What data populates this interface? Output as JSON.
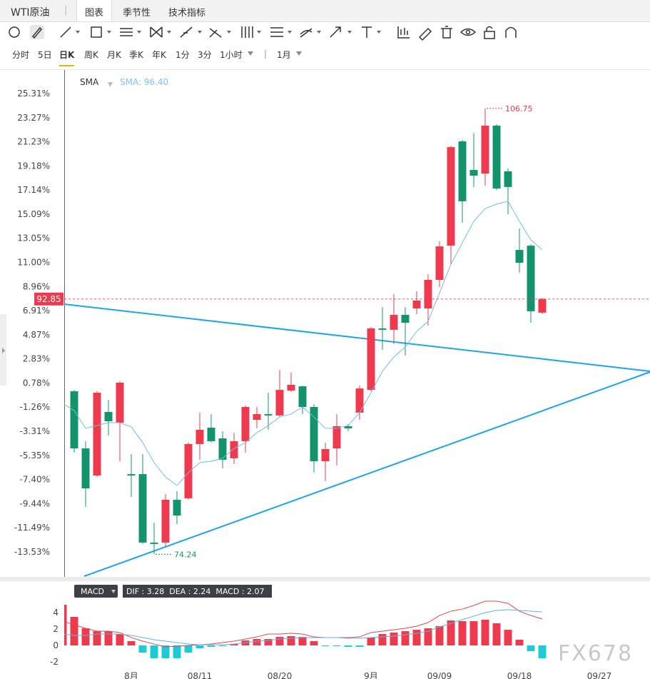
{
  "header": {
    "title": "WTI原油",
    "tabs": [
      "图表",
      "季节性",
      "技术指标"
    ]
  },
  "periods": [
    "分时",
    "5日",
    "日K",
    "周K",
    "月K",
    "季K",
    "年K",
    "1分",
    "3分",
    "1小时"
  ],
  "period_range": "1月",
  "watermark": "FX678",
  "chart_data": [
    {
      "type": "candlestick",
      "up_color": "#ee3a4c",
      "down_color": "#14946c",
      "ylim": [
        -15.65,
        27.31
      ],
      "yticks": [
        {
          "value": 25.31,
          "label": "25.31%"
        },
        {
          "value": 23.27,
          "label": "23.27%"
        },
        {
          "value": 21.23,
          "label": "21.23%"
        },
        {
          "value": 19.18,
          "label": "19.18%"
        },
        {
          "value": 17.14,
          "label": "17.14%"
        },
        {
          "value": 15.09,
          "label": "15.09%"
        },
        {
          "value": 13.05,
          "label": "13.05%"
        },
        {
          "value": 11,
          "label": "11.00%"
        },
        {
          "value": 8.96,
          "label": "8.96%"
        },
        {
          "value": 6.91,
          "label": "6.91%"
        },
        {
          "value": 4.87,
          "label": "4.87%"
        },
        {
          "value": 2.83,
          "label": "2.83%"
        },
        {
          "value": 0.78,
          "label": "0.78%"
        },
        {
          "value": -1.26,
          "label": "-1.26%"
        },
        {
          "value": -3.31,
          "label": "-3.31%"
        },
        {
          "value": -5.35,
          "label": "-5.35%"
        },
        {
          "value": -7.4,
          "label": "-7.40%"
        },
        {
          "value": -9.44,
          "label": "-9.44%"
        },
        {
          "value": -11.49,
          "label": "-11.49%"
        },
        {
          "value": -13.53,
          "label": "-13.53%"
        }
      ],
      "categories": [
        null,
        null,
        null,
        null,
        null,
        null,
        "8月",
        null,
        null,
        null,
        null,
        null,
        "08/11",
        null,
        null,
        null,
        null,
        null,
        null,
        "08/20",
        null,
        null,
        null,
        null,
        null,
        null,
        null,
        "9月",
        null,
        null,
        null,
        null,
        null,
        "09/09",
        null,
        null,
        null,
        null,
        null,
        null,
        "09/18",
        null,
        null,
        null,
        null,
        null,
        null,
        "09/27",
        null,
        null,
        null
      ],
      "open": [
        null,
        0.08,
        -4.76,
        -7.06,
        -1.67,
        -2.58,
        -6.94,
        -6.94,
        -12.74,
        -12.74,
        -9.11,
        -8.99,
        -4.39,
        -3.0,
        -3.91,
        -5.6,
        -4.15,
        -2.34,
        -1.85,
        -1.97,
        0.14,
        0.5,
        -1.25,
        -5.85,
        -4.76,
        -2.88,
        -1.73,
        0.2,
        5.41,
        5.29,
        6.56,
        7.1,
        7.1,
        9.52,
        12.42,
        21.26,
        18.84,
        18.53,
        22.59,
        18.72,
        12.06,
        12.42,
        6.74,
        null,
        null,
        null,
        null,
        null,
        null,
        null,
        null
      ],
      "high": [
        null,
        0.2,
        -4.15,
        0.08,
        -0.64,
        0.93,
        -5.24,
        -5.24,
        -11.05,
        -8.63,
        -8.39,
        -4.27,
        -1.73,
        -1.85,
        -3.31,
        -3.43,
        -1.13,
        -1.25,
        -0.04,
        1.9,
        1.66,
        0.57,
        -1.01,
        -4.27,
        -1.85,
        -2.7,
        0.57,
        5.53,
        7.22,
        8.31,
        7.22,
        8.55,
        10.0,
        12.79,
        20.89,
        21.38,
        21.98,
        24.05,
        22.71,
        18.96,
        13.87,
        12.55,
        8.01,
        null,
        null,
        null,
        null,
        null,
        null,
        null,
        null
      ],
      "low": [
        null,
        -5.12,
        -9.72,
        -7.18,
        -3.67,
        -5.85,
        -8.87,
        -12.86,
        -13.73,
        -13.05,
        -11.17,
        -9.11,
        -5.73,
        -4.27,
        -6.45,
        -6.09,
        -5.12,
        -3.06,
        -3.18,
        -2.1,
        0.02,
        -1.85,
        -6.81,
        -7.54,
        -6.21,
        -3.31,
        -2.34,
        0.08,
        3.59,
        4.08,
        3.11,
        6.62,
        5.65,
        8.91,
        10.85,
        14.36,
        17.39,
        17.5,
        17.14,
        15.09,
        10.13,
        5.89,
        6.62,
        null,
        null,
        null,
        null,
        null,
        null,
        null,
        null
      ],
      "close": [
        null,
        -4.76,
        -8.15,
        -0.04,
        -2.46,
        0.81,
        -7.06,
        -12.74,
        -12.86,
        -9.11,
        -10.45,
        -4.39,
        -3.18,
        -4.15,
        -5.73,
        -4.15,
        -1.25,
        -1.85,
        -1.97,
        0.2,
        0.63,
        -1.25,
        -5.85,
        -4.82,
        -2.88,
        -3.06,
        0.32,
        5.41,
        5.29,
        6.56,
        5.89,
        7.77,
        9.52,
        12.36,
        20.77,
        16.18,
        18.35,
        22.59,
        17.26,
        17.39,
        10.97,
        6.86,
        7.9,
        null,
        null,
        null,
        null,
        null,
        null,
        null,
        null
      ],
      "series": [
        {
          "name": "SMA",
          "color": "#6fbde9",
          "values": [
            -0.95,
            -1.55,
            -3.06,
            -2.82,
            -2.58,
            -2.58,
            -2.94,
            -4.27,
            -5.97,
            -7.18,
            -7.9,
            -6.82,
            -5.97,
            -5.85,
            -5.6,
            -4.76,
            -4.27,
            -3.43,
            -2.82,
            -2.1,
            -1.85,
            -1.25,
            -2.1,
            -3.06,
            -3.06,
            -2.82,
            -1.73,
            -0.04,
            1.78,
            2.99,
            3.83,
            5.16,
            6.01,
            8.43,
            10.85,
            12.67,
            14.48,
            15.57,
            15.94,
            16.18,
            14.48,
            12.91,
            12.06,
            null,
            null,
            null,
            null,
            null,
            null,
            null,
            null
          ]
        }
      ],
      "sma_readout": "SMA: 96.40",
      "high_label": 106.75,
      "low_label": 74.24,
      "last_price": 92.85
    },
    {
      "type": "macd",
      "legend_title": "MACD",
      "readout": "DIF : 3.28  DEA : 2.24  MACD : 2.07",
      "ylim": [
        -3.13,
        5.74
      ],
      "yticks": [
        -2,
        0,
        2,
        4
      ],
      "series": [
        {
          "name": "MACD",
          "color": "#ee3a4c",
          "negative_color": "#1ec9d8",
          "values": [
            4.96,
            3.48,
            2.09,
            1.74,
            1.74,
            1.39,
            0.52,
            -0.87,
            -1.57,
            -1.57,
            -1.57,
            -0.87,
            -0.35,
            -0.17,
            -0.09,
            0.17,
            0.61,
            0.78,
            0.78,
            1.04,
            1.13,
            1.04,
            0.52,
            -0.09,
            -0.09,
            -0.17,
            -0.17,
            0.96,
            1.39,
            1.57,
            1.74,
            1.91,
            2.09,
            2.35,
            3.04,
            2.96,
            2.96,
            3.13,
            2.7,
            1.91,
            0.7,
            -0.7,
            -1.57,
            null,
            null,
            null,
            null,
            null,
            null,
            null,
            null
          ]
        },
        {
          "name": "DIF",
          "color": "#e04848",
          "values": [
            2.96,
            2.52,
            2.09,
            1.74,
            1.74,
            1.57,
            0.96,
            0.52,
            0.17,
            -0.17,
            -0.09,
            0,
            0.09,
            0.17,
            0.35,
            0.52,
            0.78,
            1.04,
            1.39,
            1.39,
            1.48,
            1.39,
            1.04,
            0.96,
            0.96,
            0.96,
            1.04,
            1.57,
            1.74,
            1.91,
            2.09,
            2.35,
            2.78,
            3.65,
            4.17,
            4.43,
            4.87,
            5.39,
            5.39,
            5.13,
            4.17,
            3.65,
            3.22,
            null,
            null,
            null,
            null,
            null,
            null,
            null,
            null
          ]
        },
        {
          "name": "DEA",
          "color": "#5cb4e6",
          "values": [
            1.39,
            1.22,
            1.22,
            1.39,
            1.39,
            1.39,
            1.22,
            0.96,
            0.7,
            0.52,
            0.35,
            0.17,
            0.09,
            0.09,
            0.09,
            0.17,
            0.35,
            0.52,
            0.61,
            0.78,
            0.87,
            0.96,
            0.96,
            0.96,
            0.96,
            0.87,
            0.87,
            0.96,
            1.04,
            1.13,
            1.3,
            1.48,
            1.74,
            2.26,
            2.7,
            3.13,
            3.57,
            4.0,
            4.26,
            4.35,
            4.26,
            4.17,
            4.09,
            null,
            null,
            null,
            null,
            null,
            null,
            null,
            null
          ]
        }
      ]
    }
  ]
}
